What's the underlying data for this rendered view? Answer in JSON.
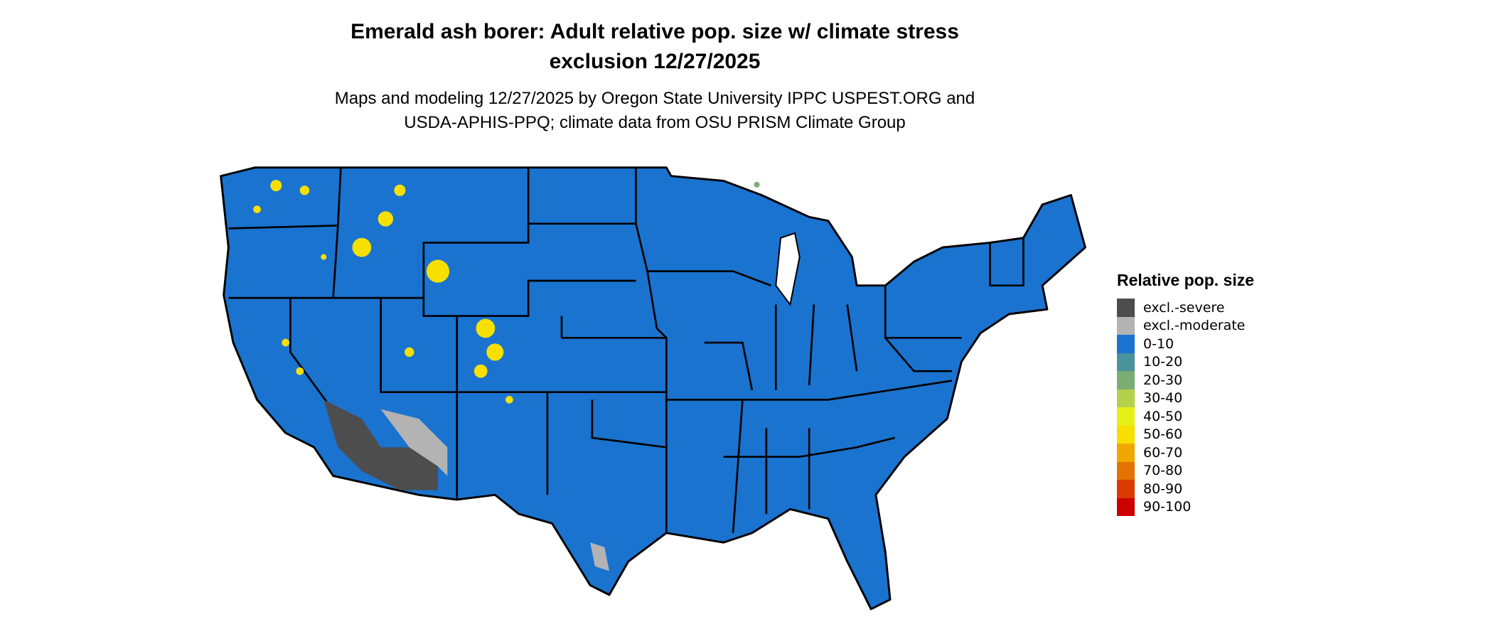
{
  "title": {
    "line1": "Emerald ash borer: Adult relative pop. size w/ climate stress",
    "line2": "exclusion 12/27/2025"
  },
  "subtitle": {
    "line1": "Maps and modeling 12/27/2025 by Oregon State University IPPC USPEST.ORG and",
    "line2": "USDA-APHIS-PPQ; climate data from OSU PRISM Climate Group"
  },
  "map": {
    "region": "Contiguous United States",
    "dominant_class": "0-10",
    "colors": {
      "land": "#1a73cf",
      "border": "#000000"
    }
  },
  "legend": {
    "title": "Relative pop. size",
    "items": [
      {
        "label": "excl.-severe",
        "color": "#4d4d4d"
      },
      {
        "label": "excl.-moderate",
        "color": "#b3b3b3"
      },
      {
        "label": "0-10",
        "color": "#1a73cf"
      },
      {
        "label": "10-20",
        "color": "#4a929c"
      },
      {
        "label": "20-30",
        "color": "#7bad73"
      },
      {
        "label": "30-40",
        "color": "#b3d14a"
      },
      {
        "label": "40-50",
        "color": "#e6f017"
      },
      {
        "label": "50-60",
        "color": "#f7e000"
      },
      {
        "label": "60-70",
        "color": "#f0a800"
      },
      {
        "label": "70-80",
        "color": "#e37300"
      },
      {
        "label": "80-90",
        "color": "#d93a00"
      },
      {
        "label": "90-100",
        "color": "#cc0000"
      }
    ]
  }
}
